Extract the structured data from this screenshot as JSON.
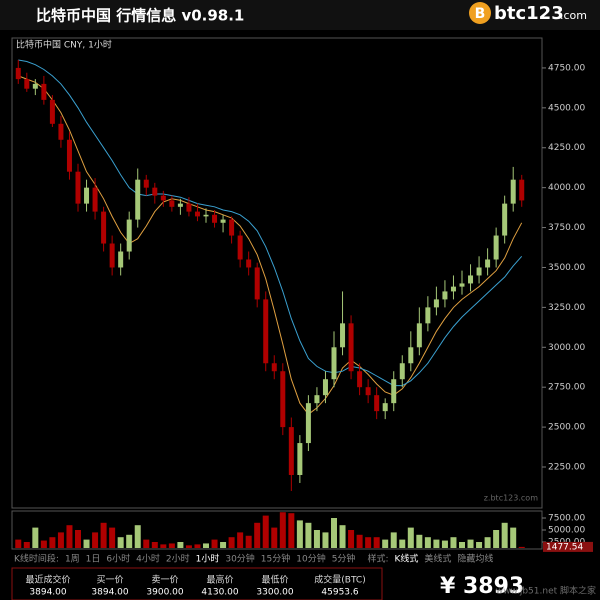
{
  "header": {
    "title": "比特币中国 行情信息 v0.98.1",
    "logo": {
      "mark": "B",
      "name": "btc123",
      "domain": ".com"
    }
  },
  "chart_data": {
    "type": "candlestick",
    "title": "比特币中国 CNY, 1小时",
    "watermark": "z.btc123.com",
    "categories": [
      null,
      null,
      null,
      null,
      null,
      null,
      null,
      null,
      null,
      null,
      null,
      null,
      null,
      null,
      null,
      null,
      null,
      null,
      null,
      null,
      null,
      null,
      null,
      null,
      null,
      null,
      null,
      null,
      null,
      null,
      null,
      null,
      null,
      null,
      null,
      null,
      null,
      null,
      null,
      null,
      null,
      null,
      null,
      null,
      null,
      null,
      null,
      null,
      null,
      null,
      null,
      null,
      null,
      null,
      null,
      null,
      null,
      null,
      null,
      null
    ],
    "open": [
      4750,
      4680,
      4620,
      4650,
      4550,
      4400,
      4300,
      4100,
      3900,
      4000,
      3850,
      3650,
      3500,
      3600,
      3800,
      4050,
      4000,
      3950,
      3920,
      3880,
      3900,
      3850,
      3820,
      3830,
      3780,
      3800,
      3700,
      3550,
      3500,
      3300,
      2900,
      2850,
      2500,
      2200,
      2400,
      2650,
      2700,
      2800,
      3000,
      3150,
      2850,
      2750,
      2700,
      2600,
      2650,
      2800,
      2900,
      3000,
      3150,
      3250,
      3300,
      3350,
      3380,
      3400,
      3450,
      3500,
      3550,
      3700,
      3900,
      4050
    ],
    "high": [
      4800,
      4720,
      4680,
      4700,
      4580,
      4450,
      4350,
      4150,
      4050,
      4060,
      3880,
      3700,
      3650,
      3850,
      4120,
      4080,
      4030,
      3980,
      3950,
      3930,
      3940,
      3900,
      3870,
      3860,
      3830,
      3820,
      3730,
      3600,
      3530,
      3350,
      2950,
      2900,
      2560,
      2450,
      2700,
      2750,
      2850,
      3100,
      3350,
      3200,
      2900,
      2800,
      2750,
      2680,
      2850,
      2950,
      3100,
      3250,
      3320,
      3380,
      3420,
      3450,
      3480,
      3520,
      3570,
      3620,
      3750,
      3950,
      4130,
      4080
    ],
    "low": [
      4650,
      4600,
      4580,
      4520,
      4380,
      4250,
      4050,
      3850,
      3850,
      3800,
      3600,
      3450,
      3450,
      3550,
      3750,
      3950,
      3900,
      3880,
      3850,
      3830,
      3820,
      3790,
      3780,
      3750,
      3720,
      3650,
      3500,
      3450,
      3250,
      2850,
      2800,
      2450,
      2100,
      2150,
      2350,
      2600,
      2650,
      2750,
      2950,
      2800,
      2700,
      2650,
      2550,
      2550,
      2600,
      2750,
      2850,
      2950,
      3100,
      3200,
      3250,
      3300,
      3330,
      3350,
      3400,
      3450,
      3500,
      3650,
      3850,
      3880
    ],
    "close": [
      4680,
      4620,
      4650,
      4550,
      4400,
      4300,
      4100,
      3900,
      4000,
      3850,
      3650,
      3500,
      3600,
      3800,
      4050,
      4000,
      3950,
      3920,
      3880,
      3900,
      3850,
      3820,
      3830,
      3780,
      3800,
      3700,
      3550,
      3500,
      3300,
      2900,
      2850,
      2500,
      2200,
      2400,
      2650,
      2700,
      2800,
      3000,
      3150,
      2850,
      2750,
      2700,
      2600,
      2650,
      2800,
      2900,
      3000,
      3150,
      3250,
      3300,
      3350,
      3380,
      3400,
      3450,
      3500,
      3550,
      3700,
      3900,
      4050,
      3920
    ],
    "up_color": "#a6c878",
    "down_color": "#b00000",
    "moving_averages": [
      {
        "color": "#e0a040",
        "values": [
          4700,
          4680,
          4660,
          4620,
          4550,
          4470,
          4360,
          4230,
          4100,
          4020,
          3930,
          3820,
          3720,
          3650,
          3680,
          3760,
          3850,
          3910,
          3930,
          3920,
          3900,
          3880,
          3860,
          3850,
          3830,
          3810,
          3760,
          3680,
          3580,
          3430,
          3230,
          3020,
          2800,
          2650,
          2580,
          2620,
          2680,
          2760,
          2870,
          2920,
          2880,
          2830,
          2770,
          2720,
          2700,
          2740,
          2810,
          2900,
          3000,
          3100,
          3180,
          3250,
          3300,
          3340,
          3380,
          3430,
          3480,
          3560,
          3680,
          3780
        ]
      },
      {
        "color": "#3aa0d0",
        "values": [
          4800,
          4790,
          4770,
          4740,
          4700,
          4650,
          4580,
          4500,
          4410,
          4330,
          4250,
          4170,
          4080,
          4000,
          3960,
          3950,
          3960,
          3960,
          3950,
          3940,
          3920,
          3900,
          3890,
          3880,
          3860,
          3850,
          3830,
          3790,
          3730,
          3630,
          3500,
          3350,
          3180,
          3040,
          2930,
          2880,
          2850,
          2840,
          2850,
          2880,
          2870,
          2850,
          2820,
          2790,
          2760,
          2760,
          2790,
          2840,
          2900,
          2980,
          3060,
          3130,
          3190,
          3240,
          3290,
          3340,
          3390,
          3440,
          3510,
          3570
        ]
      }
    ],
    "ylim": [
      2012,
      4925
    ],
    "yticks": [
      {
        "value": 4750,
        "label": "4750.00"
      },
      {
        "value": 4500,
        "label": "4500.00"
      },
      {
        "value": 4250,
        "label": "4250.00"
      },
      {
        "value": 4000,
        "label": "4000.00"
      },
      {
        "value": 3750,
        "label": "3750.00"
      },
      {
        "value": 3500,
        "label": "3500.00"
      },
      {
        "value": 3250,
        "label": "3250.00"
      },
      {
        "value": 3000,
        "label": "3000.00"
      },
      {
        "value": 2750,
        "label": "2750.00"
      },
      {
        "value": 2500,
        "label": "2500.00"
      },
      {
        "value": 2250,
        "label": "2250.00"
      }
    ],
    "volume": {
      "values": [
        3000,
        2500,
        5500,
        2800,
        3500,
        4500,
        6000,
        5000,
        3000,
        4500,
        6500,
        5500,
        3500,
        4000,
        6000,
        3000,
        2500,
        2000,
        2200,
        2500,
        1800,
        2000,
        2200,
        3000,
        2500,
        3500,
        4500,
        3800,
        6500,
        8000,
        5500,
        8700,
        8500,
        7000,
        6500,
        5000,
        4500,
        7500,
        6000,
        5000,
        4000,
        3500,
        3500,
        3000,
        4500,
        3000,
        5500,
        4000,
        3500,
        3000,
        2800,
        3500,
        2500,
        3000,
        2500,
        3500,
        5000,
        6500,
        5500,
        1477.54
      ],
      "ylim": [
        1250,
        8750
      ],
      "yticks": [
        {
          "value": 7500,
          "label": "7500.00"
        },
        {
          "value": 5000,
          "label": "5000.00"
        },
        {
          "value": 2500,
          "label": "2500.00"
        }
      ]
    }
  },
  "toolbar": {
    "label": "K线时间段:",
    "periods": [
      "1周",
      "1日",
      "6小时",
      "4小时",
      "2小时",
      "1小时",
      "30分钟",
      "15分钟",
      "10分钟",
      "5分钟"
    ],
    "active": 5,
    "style_label": "样式:",
    "styles": [
      "K线式",
      "美线式"
    ],
    "ma_toggle": "隐藏均线"
  },
  "ticker": {
    "headers": [
      "最近成交价",
      "买一价",
      "卖一价",
      "最高价",
      "最低价",
      "成交量(BTC)"
    ],
    "values": [
      "3894.00",
      "3894.00",
      "3900.00",
      "4130.00",
      "3300.00",
      "45953.6"
    ],
    "price": "¥ 3893"
  },
  "watermark": "www.jb51.net 脚本之家"
}
